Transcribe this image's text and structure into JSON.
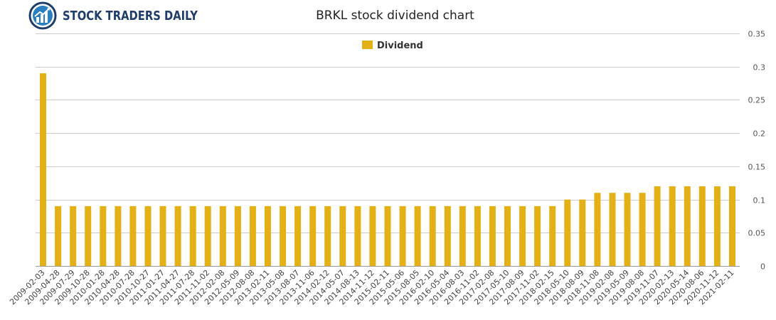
{
  "brand": {
    "name": "STOCK TRADERS DAILY",
    "logo_color": "#1f3d6b",
    "accent": "#2a7fc1"
  },
  "chart_data": {
    "type": "bar",
    "title": "BRKL stock dividend chart",
    "legend": {
      "position": "top-center",
      "entries": [
        "Dividend"
      ]
    },
    "bar_color": "#e3b015",
    "grid": true,
    "ylim": [
      0,
      0.35
    ],
    "yticks": [
      "0",
      "0.05",
      "0.1",
      "0.15",
      "0.2",
      "0.25",
      "0.3",
      "0.35"
    ],
    "yaxis_side": "right",
    "categories": [
      "2009-02-03",
      "2009-04-28",
      "2009-07-29",
      "2009-10-28",
      "2010-01-28",
      "2010-04-28",
      "2010-07-28",
      "2010-10-27",
      "2011-01-27",
      "2011-04-27",
      "2011-07-28",
      "2011-11-02",
      "2012-02-08",
      "2012-05-09",
      "2012-08-08",
      "2013-02-11",
      "2013-05-08",
      "2013-08-07",
      "2013-11-06",
      "2014-02-12",
      "2014-05-07",
      "2014-08-13",
      "2014-11-12",
      "2015-02-11",
      "2015-05-06",
      "2015-08-05",
      "2016-02-10",
      "2016-05-04",
      "2016-08-03",
      "2016-11-02",
      "2017-02-08",
      "2017-05-10",
      "2017-08-09",
      "2017-11-02",
      "2018-02-15",
      "2018-05-10",
      "2018-08-09",
      "2018-11-08",
      "2019-02-08",
      "2019-05-09",
      "2019-08-08",
      "2019-11-07",
      "2020-02-13",
      "2020-05-14",
      "2020-08-06",
      "2020-11-12",
      "2021-02-11"
    ],
    "series": [
      {
        "name": "Dividend",
        "values": [
          0.29,
          0.09,
          0.09,
          0.09,
          0.09,
          0.09,
          0.09,
          0.09,
          0.09,
          0.09,
          0.09,
          0.09,
          0.09,
          0.09,
          0.09,
          0.09,
          0.09,
          0.09,
          0.09,
          0.09,
          0.09,
          0.09,
          0.09,
          0.09,
          0.09,
          0.09,
          0.09,
          0.09,
          0.09,
          0.09,
          0.09,
          0.09,
          0.09,
          0.09,
          0.09,
          0.1,
          0.1,
          0.11,
          0.11,
          0.11,
          0.11,
          0.12,
          0.12,
          0.12,
          0.12,
          0.12,
          0.12
        ]
      }
    ]
  }
}
